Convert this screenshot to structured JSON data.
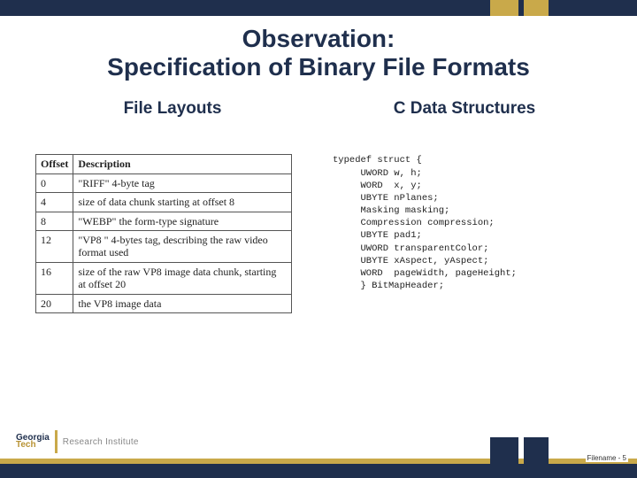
{
  "title": {
    "line1": "Observation:",
    "line2": "Specification of Binary File Formats"
  },
  "left": {
    "heading": "File Layouts",
    "table": {
      "headers": [
        "Offset",
        "Description"
      ],
      "rows": [
        [
          "0",
          "\"RIFF\" 4-byte tag"
        ],
        [
          "4",
          "size of data chunk starting at offset 8"
        ],
        [
          "8",
          "\"WEBP\" the form-type signature"
        ],
        [
          "12",
          "\"VP8 \" 4-bytes tag, describing the raw video format used"
        ],
        [
          "16",
          "size of the raw VP8 image data chunk, starting at offset 20"
        ],
        [
          "20",
          "the VP8 image data"
        ]
      ]
    }
  },
  "right": {
    "heading": "C Data Structures",
    "code": "typedef struct {\n     UWORD w, h;\n     WORD  x, y;\n     UBYTE nPlanes;\n     Masking masking;\n     Compression compression;\n     UBYTE pad1;\n     UWORD transparentColor;\n     UBYTE xAspect, yAspect;\n     WORD  pageWidth, pageHeight;\n     } BitMapHeader;"
  },
  "footer": {
    "page_label": "Filename - 5",
    "logo": {
      "line1": "Georgia",
      "line2": "Tech",
      "institute": "Research Institute"
    }
  },
  "colors": {
    "navy": "#1f2f4d",
    "gold": "#c9a94a"
  }
}
